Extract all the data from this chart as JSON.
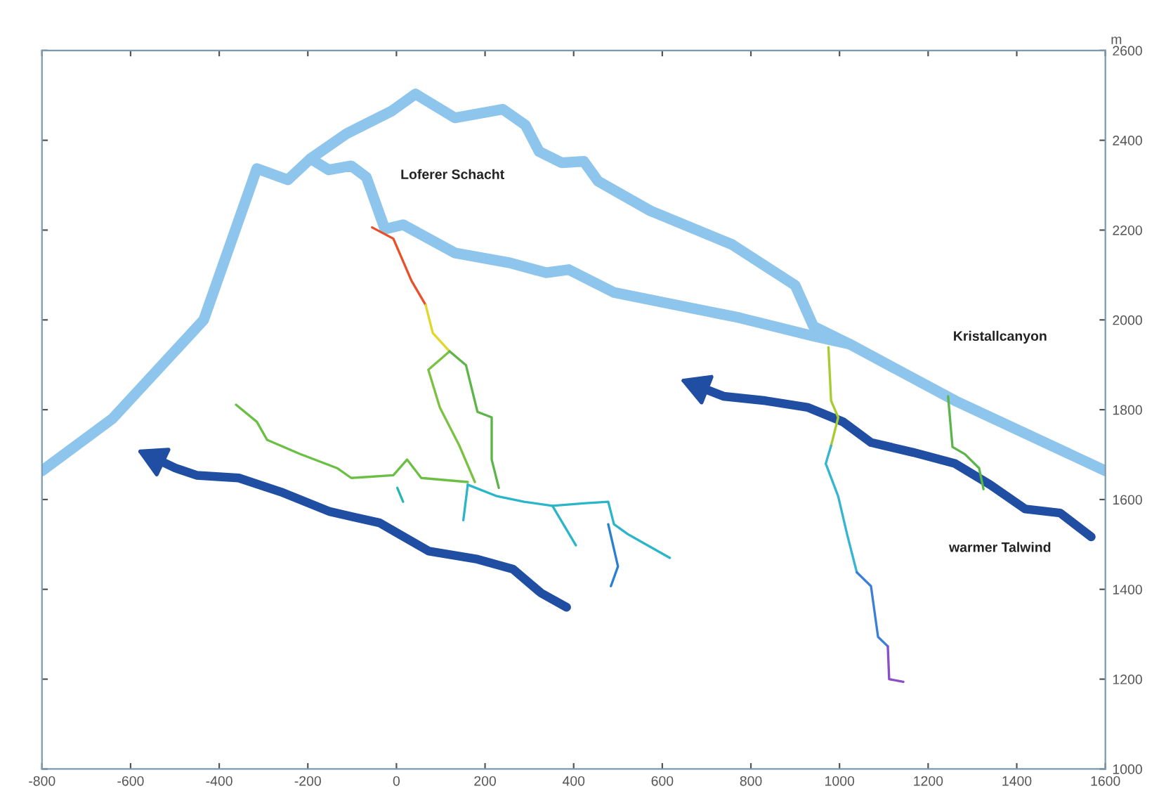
{
  "chart_data": {
    "type": "line",
    "ylabel": "m",
    "xlim": [
      -800,
      1600
    ],
    "ylim": [
      1000,
      2600
    ],
    "xticks": [
      -800,
      -600,
      -400,
      -200,
      0,
      200,
      400,
      600,
      800,
      1000,
      1200,
      1400,
      1600
    ],
    "yticks": [
      1000,
      1200,
      1400,
      1600,
      1800,
      2000,
      2200,
      2400,
      2600
    ],
    "grid": false,
    "legend": false,
    "annotations": [
      "Loferer Schacht",
      "Kristallcanyon",
      "warmer Talwind"
    ],
    "series": [
      {
        "color": "#8ec5ec",
        "x": [
          -800,
          -641,
          -435,
          -315,
          -245,
          -194,
          -112,
          -11,
          43,
          132,
          240,
          291,
          322,
          373,
          423,
          455,
          573,
          757,
          900,
          941,
          1023,
          1261,
          1600
        ],
        "values": [
          1664,
          1780,
          2000,
          2337,
          2312,
          2359,
          2415,
          2465,
          2503,
          2450,
          2469,
          2434,
          2375,
          2350,
          2353,
          2309,
          2243,
          2168,
          2077,
          1986,
          1946,
          1820,
          1664
        ]
      },
      {
        "color": "#8ec5ec",
        "x": [
          -194,
          -153,
          -102,
          -68,
          -26,
          15,
          132,
          256,
          338,
          389,
          491,
          773,
          941,
          1023
        ],
        "values": [
          2359,
          2334,
          2343,
          2318,
          2202,
          2212,
          2149,
          2127,
          2105,
          2112,
          2061,
          2005,
          1964,
          1946
        ]
      },
      {
        "color": "#1f4ea3",
        "x": [
          384,
          326,
          263,
          183,
          73,
          -38,
          -150,
          -261,
          -356,
          -451,
          -499,
          -546
        ],
        "values": [
          1360,
          1392,
          1445,
          1467,
          1485,
          1548,
          1573,
          1617,
          1648,
          1654,
          1670,
          1692
        ]
      },
      {
        "color": "#1f4ea3",
        "x": [
          1568,
          1498,
          1419,
          1340,
          1261,
          1166,
          1071,
          1008,
          929,
          833,
          738,
          681
        ],
        "values": [
          1517,
          1570,
          1579,
          1633,
          1680,
          1705,
          1727,
          1773,
          1805,
          1820,
          1830,
          1852
        ]
      },
      {
        "color": "#e8502a",
        "x": [
          -55,
          -7,
          34,
          66
        ],
        "values": [
          2206,
          2181,
          2087,
          2033
        ]
      },
      {
        "color": "#e0d72a",
        "x": [
          66,
          82,
          120
        ],
        "values": [
          2033,
          1971,
          1930
        ]
      },
      {
        "color": "#7cc242",
        "x": [
          120,
          72,
          98,
          142,
          177
        ],
        "values": [
          1930,
          1889,
          1805,
          1720,
          1639
        ]
      },
      {
        "color": "#5cb548",
        "x": [
          120,
          157,
          183,
          215,
          215,
          231
        ],
        "values": [
          1930,
          1899,
          1795,
          1783,
          1689,
          1626
        ]
      },
      {
        "color": "#6cbf45",
        "x": [
          -362,
          -315,
          -292,
          -219,
          -134,
          -102,
          -7,
          24,
          56,
          161
        ],
        "values": [
          1811,
          1773,
          1733,
          1702,
          1670,
          1648,
          1654,
          1689,
          1648,
          1639
        ]
      },
      {
        "color": "#2ab5b0",
        "x": [
          2,
          15
        ],
        "values": [
          1626,
          1595
        ]
      },
      {
        "color": "#2ab5c9",
        "x": [
          161,
          225,
          288,
          352,
          427,
          478,
          491,
          522,
          617
        ],
        "values": [
          1633,
          1608,
          1595,
          1586,
          1592,
          1595,
          1545,
          1523,
          1470
        ]
      },
      {
        "color": "#2ab5c9",
        "x": [
          352,
          405
        ],
        "values": [
          1586,
          1498
        ]
      },
      {
        "color": "#2ab5c9",
        "x": [
          161,
          151
        ],
        "values": [
          1633,
          1554
        ]
      },
      {
        "color": "#2a7fd0",
        "x": [
          478,
          500,
          484
        ],
        "values": [
          1545,
          1451,
          1407
        ]
      },
      {
        "color": "#a8cc30",
        "x": [
          975,
          981,
          997,
          981
        ],
        "values": [
          1939,
          1820,
          1783,
          1720
        ]
      },
      {
        "color": "#35b5d0",
        "x": [
          981,
          969,
          997,
          1017,
          1039
        ],
        "values": [
          1720,
          1680,
          1607,
          1523,
          1438
        ]
      },
      {
        "color": "#3a7fd8",
        "x": [
          1039,
          1071,
          1087,
          1109
        ],
        "values": [
          1438,
          1407,
          1294,
          1273
        ]
      },
      {
        "color": "#8a4fc8",
        "x": [
          1109,
          1112,
          1144
        ],
        "values": [
          1273,
          1200,
          1194
        ]
      },
      {
        "color": "#5cb548",
        "x": [
          1245,
          1255,
          1283,
          1315,
          1325
        ],
        "values": [
          1830,
          1717,
          1701,
          1670,
          1623
        ]
      }
    ]
  }
}
